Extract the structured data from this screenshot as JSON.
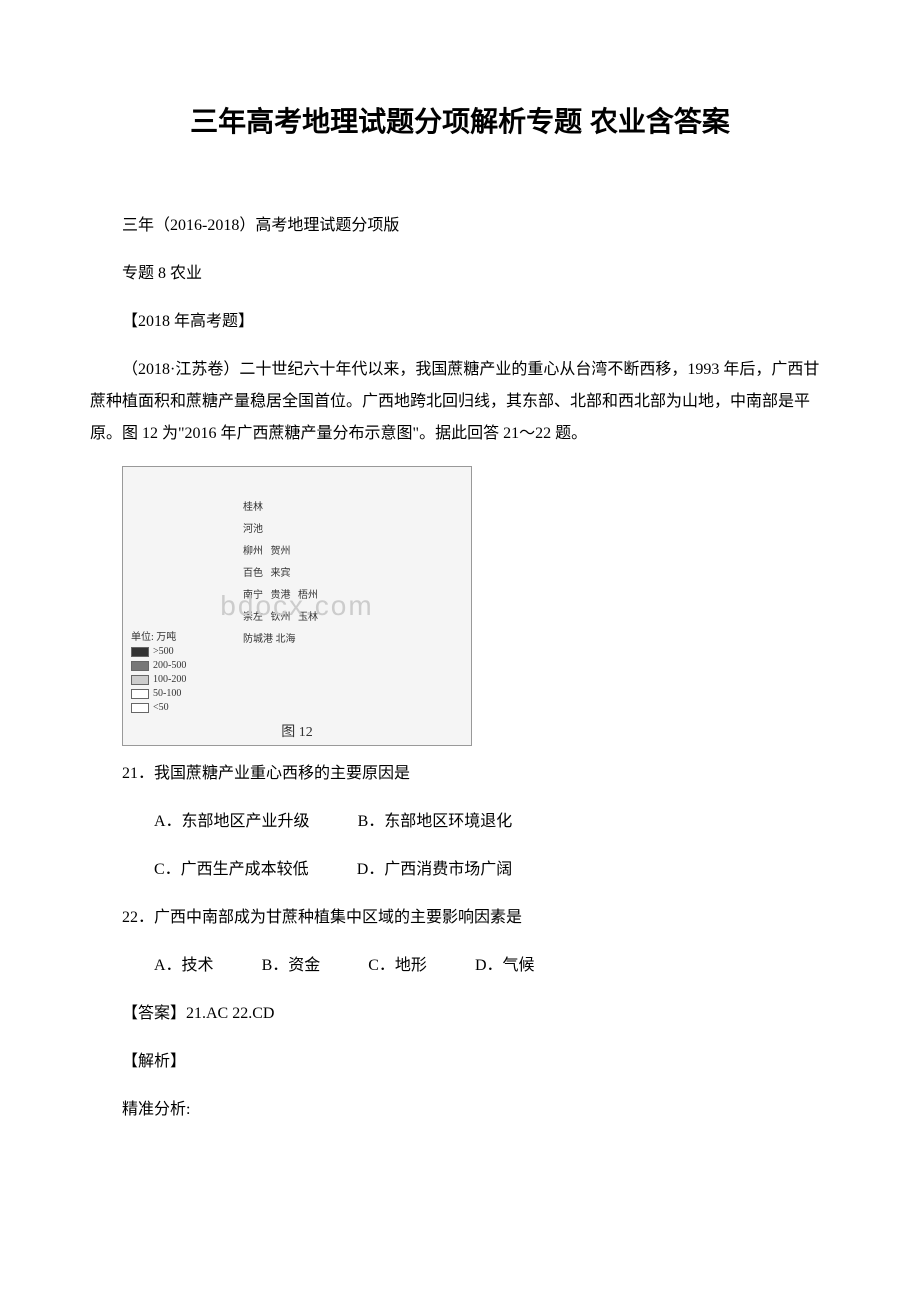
{
  "title": "三年高考地理试题分项解析专题 农业含答案",
  "intro_line1": "三年（2016-2018）高考地理试题分项版",
  "intro_line2": "专题 8 农业",
  "intro_line3": "【2018 年高考题】",
  "passage": "（2018·江苏卷）二十世纪六十年代以来，我国蔗糖产业的重心从台湾不断西移，1993 年后，广西甘蔗种植面积和蔗糖产量稳居全国首位。广西地跨北回归线，其东部、北部和西北部为山地，中南部是平原。图 12 为\"2016 年广西蔗糖产量分布示意图\"。据此回答 21～22 题。",
  "figure": {
    "caption": "图 12",
    "watermark": "bdocx.com",
    "legend_title": "单位: 万吨",
    "legend": [
      {
        "label": ">500",
        "color": "#333333"
      },
      {
        "label": "200-500",
        "color": "#777777"
      },
      {
        "label": "100-200",
        "color": "#cccccc"
      },
      {
        "label": "50-100",
        "color": "#ffffff"
      },
      {
        "label": "<50",
        "color": "#ffffff"
      }
    ],
    "cities": "桂林\n河池\n柳州   贺州\n百色   来宾\n南宁   贵港   梧州\n崇左   钦州   玉林\n防城港 北海"
  },
  "q21": {
    "stem": "21．我国蔗糖产业重心西移的主要原因是",
    "optA": "A．东部地区产业升级",
    "optB": "B．东部地区环境退化",
    "optC": "C．广西生产成本较低",
    "optD": "D．广西消费市场广阔"
  },
  "q22": {
    "stem": "22．广西中南部成为甘蔗种植集中区域的主要影响因素是",
    "optA": "A．技术",
    "optB": "B．资金",
    "optC": "C．地形",
    "optD": "D．气候"
  },
  "answer": "【答案】21.AC 22.CD",
  "analysis_label": "【解析】",
  "analysis_sub": "精准分析:"
}
